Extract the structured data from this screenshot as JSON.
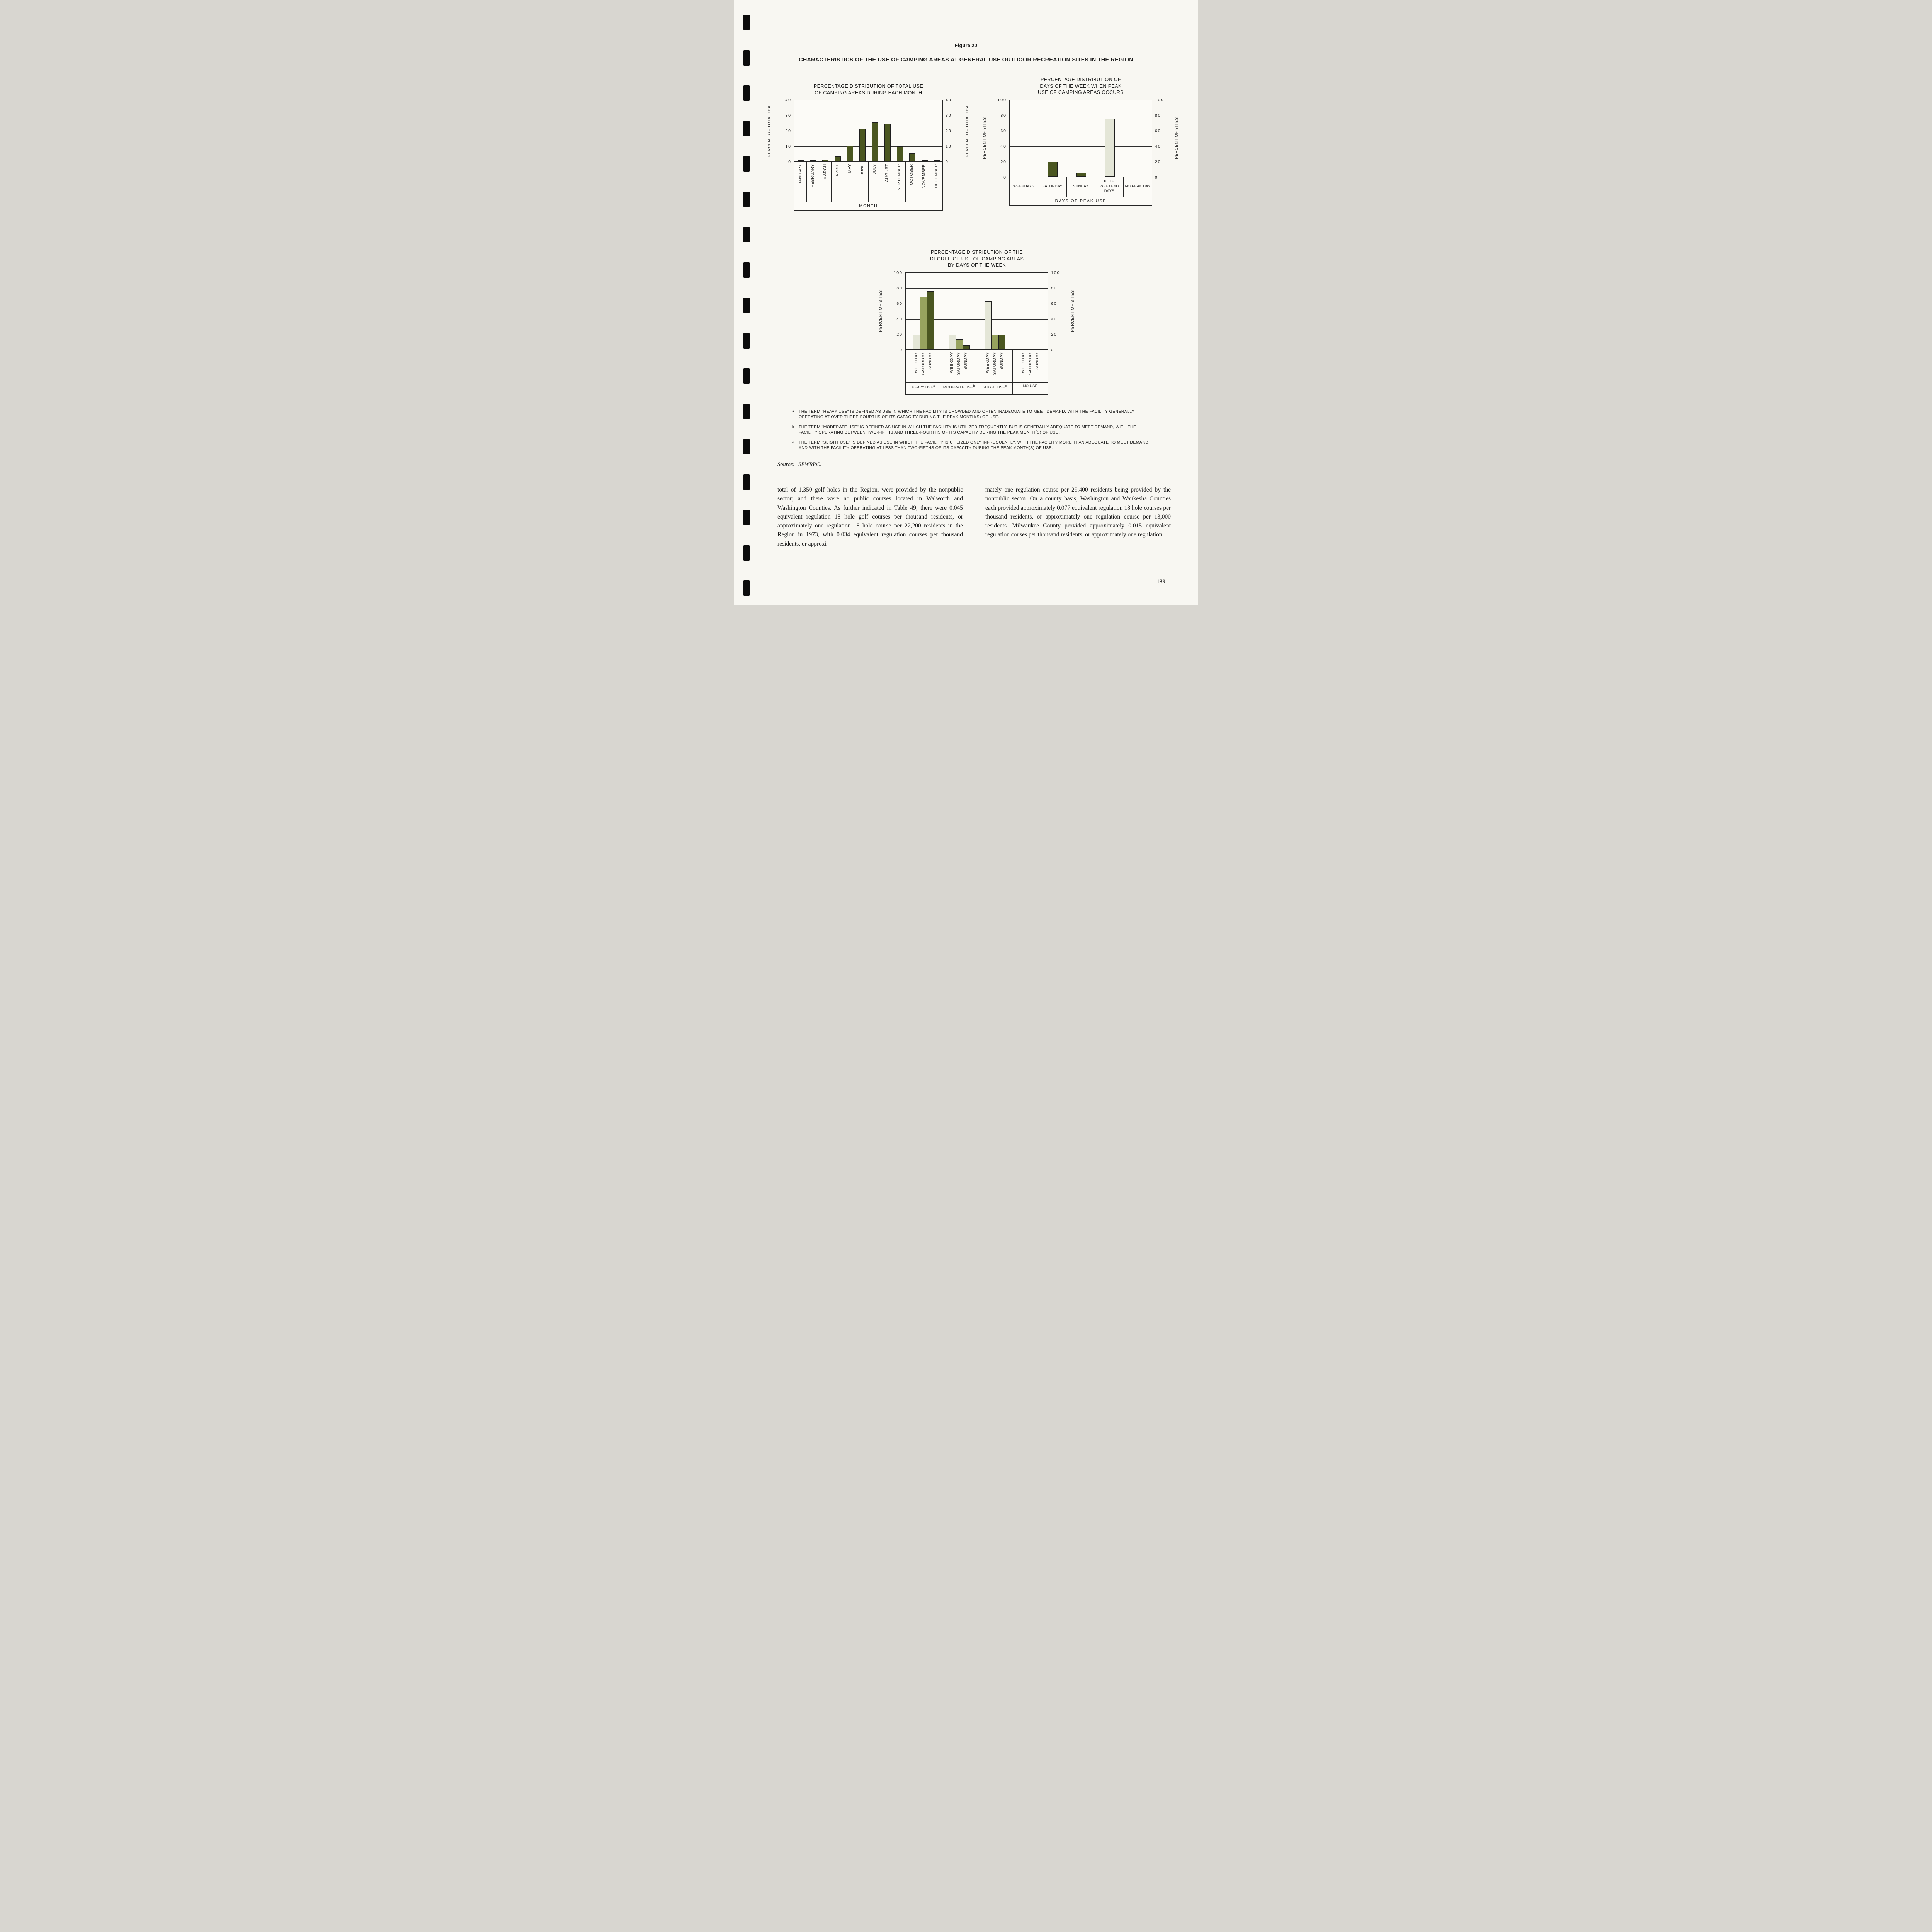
{
  "page": {
    "figure_label": "Figure 20",
    "title": "CHARACTERISTICS OF THE USE OF CAMPING AREAS AT GENERAL USE OUTDOOR RECREATION SITES IN THE REGION",
    "source_label": "Source:",
    "source_value": "SEWRPC.",
    "page_number": "139"
  },
  "chart_data": [
    {
      "type": "bar",
      "title": "PERCENTAGE DISTRIBUTION OF TOTAL USE\nOF CAMPING AREAS DURING EACH MONTH",
      "ylabel": "PERCENT OF TOTAL USE",
      "xlabel": "MONTH",
      "ylim": [
        0,
        40
      ],
      "yticks": [
        0,
        10,
        20,
        30,
        40
      ],
      "grid": true,
      "categories": [
        "JANUARY",
        "FEBRUARY",
        "MARCH",
        "APRIL",
        "MAY",
        "JUNE",
        "JULY",
        "AUGUST",
        "SEPTEMBER",
        "OCTOBER",
        "NOVEMBER",
        "DECEMBER"
      ],
      "values": [
        0.5,
        0.5,
        1,
        3,
        10,
        21,
        25,
        24,
        9.5,
        5,
        0.5,
        0.5
      ],
      "bar_style": "dark"
    },
    {
      "type": "bar",
      "title": "PERCENTAGE DISTRIBUTION OF\nDAYS OF THE WEEK WHEN PEAK\nUSE OF CAMPING AREAS OCCURS",
      "ylabel": "PERCENT OF SITES",
      "xlabel": "DAYS OF PEAK USE",
      "ylim": [
        0,
        100
      ],
      "yticks": [
        0,
        20,
        40,
        60,
        80,
        100
      ],
      "grid": true,
      "categories": [
        "WEEKDAYS",
        "SATURDAY",
        "SUNDAY",
        "BOTH WEEKEND DAYS",
        "NO PEAK DAY"
      ],
      "values": [
        0,
        19,
        5,
        75,
        0
      ],
      "bar_styles": [
        "dark",
        "dark",
        "dark",
        "light",
        "dark"
      ]
    },
    {
      "type": "bar",
      "title": "PERCENTAGE DISTRIBUTION OF THE\nDEGREE OF USE OF CAMPING AREAS\nBY DAYS OF THE WEEK",
      "ylabel": "PERCENT OF SITES",
      "ylim": [
        0,
        100
      ],
      "yticks": [
        0,
        20,
        40,
        60,
        80,
        100
      ],
      "grid": true,
      "groups": [
        {
          "label": "HEAVY USE",
          "sup": "a"
        },
        {
          "label": "MODERATE USE",
          "sup": "b"
        },
        {
          "label": "SLIGHT USE",
          "sup": "c"
        },
        {
          "label": "NO USE",
          "sup": ""
        }
      ],
      "series_labels": [
        "WEEKDAY",
        "SATURDAY",
        "SUNDAY"
      ],
      "series": [
        {
          "name": "WEEKDAY",
          "style": "light",
          "values": [
            19,
            19,
            62,
            0
          ]
        },
        {
          "name": "SATURDAY",
          "style": "medium",
          "values": [
            68,
            13,
            19,
            0
          ]
        },
        {
          "name": "SUNDAY",
          "style": "dark",
          "values": [
            75,
            5,
            19,
            0
          ]
        }
      ]
    }
  ],
  "footnotes": [
    {
      "marker": "a",
      "text": "THE TERM \"HEAVY USE\" IS DEFINED AS USE IN WHICH THE FACILITY IS CROWDED AND OFTEN INADEQUATE TO MEET DEMAND, WITH THE FACILITY GENERALLY OPERATING AT OVER THREE-FOURTHS OF ITS CAPACITY DURING THE PEAK MONTH(S) OF USE."
    },
    {
      "marker": "b",
      "text": "THE TERM \"MODERATE USE\" IS DEFINED AS USE IN WHICH THE FACILITY IS UTILIZED FREQUENTLY, BUT IS GENERALLY ADEQUATE TO MEET DEMAND, WITH THE FACILITY OPERATING BETWEEN TWO-FIFTHS AND THREE-FOURTHS OF ITS CAPACITY DURING THE PEAK MONTH(S) OF USE."
    },
    {
      "marker": "c",
      "text": "THE TERM \"SLIGHT USE\" IS DEFINED AS USE IN WHICH THE FACILITY IS UTILIZED ONLY INFREQUENTLY, WITH THE FACILITY MORE THAN ADEQUATE TO MEET DEMAND, AND WITH THE FACILITY OPERATING AT LESS THAN TWO-FIFTHS OF ITS CAPACITY DURING THE PEAK MONTH(S) OF USE."
    }
  ],
  "body": {
    "col1": "total of 1,350 golf holes in the Region, were provided by the nonpublic sector; and there were no public courses located in Walworth and Washington Counties. As further indicated in Table 49, there were 0.045 equivalent regulation 18 hole golf courses per thousand residents, or approximately one regulation 18 hole course per 22,200 residents in the Region in 1973, with 0.034 equivalent regulation courses per thousand residents, or approxi-",
    "col2": "mately one regulation course per 29,400 residents being provided by the nonpublic sector. On a county basis, Washington and Waukesha Counties each provided approximately 0.077 equivalent regulation 18 hole courses per thousand residents, or approximately one regulation course per 13,000 residents. Milwaukee County provided approximately 0.015 equivalent regulation couses per thousand residents, or approximately one regulation"
  },
  "colors": {
    "bar_dark": "#4a5620",
    "bar_medium": "#97a35e",
    "bar_light": "#e4e6d7",
    "paper": "#f8f7f2"
  }
}
